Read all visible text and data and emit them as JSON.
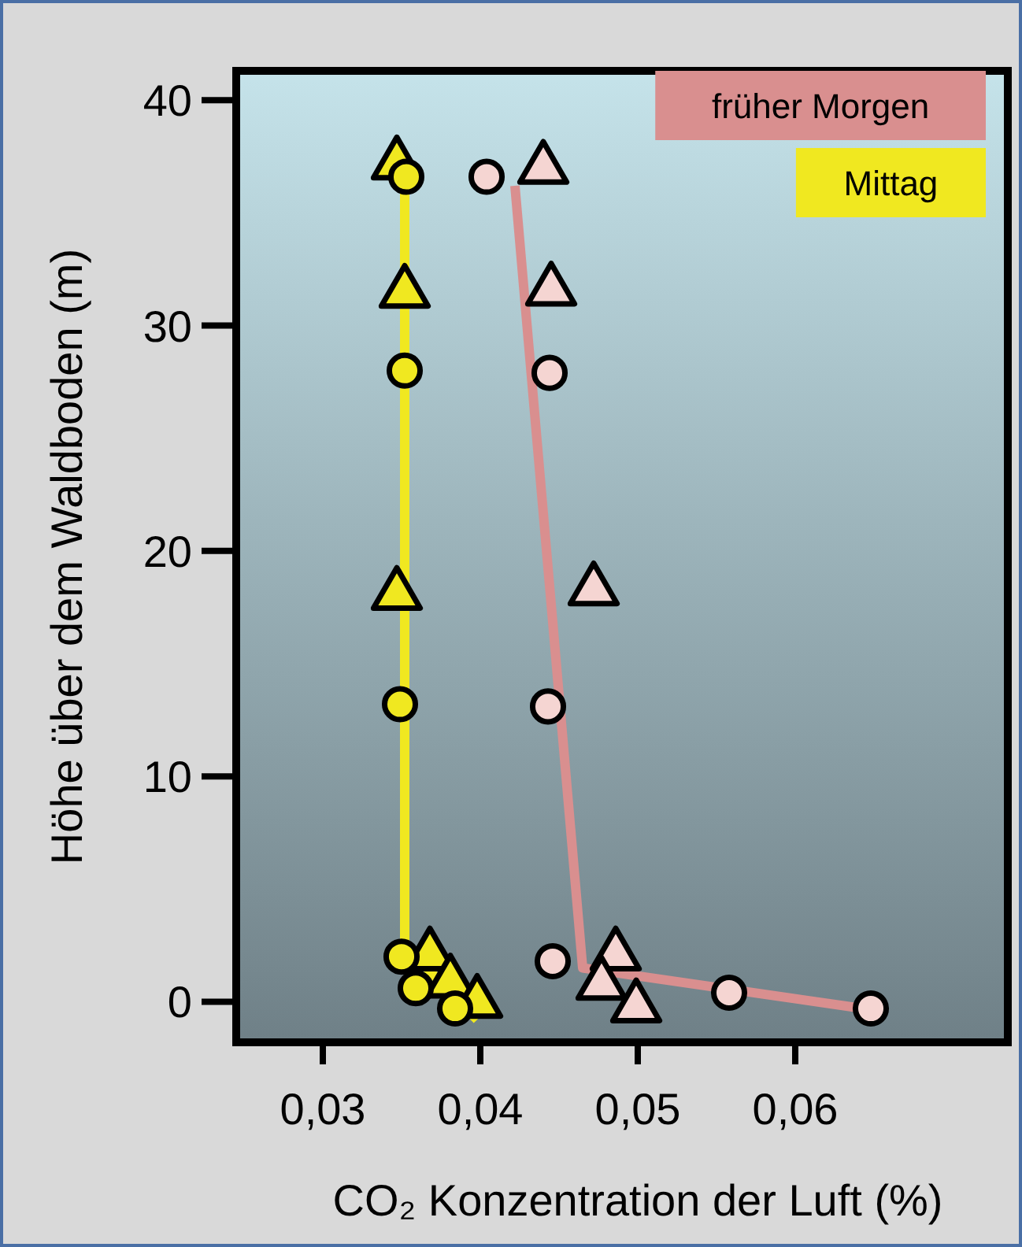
{
  "chart_data": {
    "type": "scatter",
    "xlabel": "CO₂ Konzentration der Luft (%)",
    "ylabel": "Höhe über dem Waldboden (m)",
    "xlim": [
      0.0245,
      0.0735
    ],
    "ylim": [
      -1.8,
      41.3
    ],
    "xticks": [
      {
        "value": 0.03,
        "label": "0,03"
      },
      {
        "value": 0.04,
        "label": "0,04"
      },
      {
        "value": 0.05,
        "label": "0,05"
      },
      {
        "value": 0.06,
        "label": "0,06"
      }
    ],
    "yticks": [
      0,
      10,
      20,
      30,
      40
    ],
    "grid": false,
    "legend": "top right",
    "series": [
      {
        "name": "früher Morgen",
        "type": "line",
        "color": "#d98f8f",
        "marker": "none",
        "x": [
          0.0422,
          0.0465,
          0.0648
        ],
        "values": [
          36.2,
          1.5,
          -0.35
        ]
      },
      {
        "name": "Mittag",
        "type": "line",
        "color": "#f0e820",
        "marker": "none",
        "x": [
          0.0352,
          0.0352,
          0.0398
        ],
        "values": [
          37,
          2.5,
          -0.8
        ]
      },
      {
        "color": "#f0e820",
        "marker": "triangle",
        "x": [
          0.0347,
          0.0352,
          0.0347,
          0.0368,
          0.0381,
          0.0398
        ],
        "values": [
          37.3,
          31.6,
          18.2,
          2.2,
          1.0,
          0.1
        ]
      },
      {
        "color": "#f0e820",
        "marker": "circle",
        "x": [
          0.0353,
          0.0352,
          0.0349,
          0.035,
          0.0359,
          0.0384
        ],
        "values": [
          36.6,
          28.0,
          13.2,
          2.0,
          0.6,
          -0.3
        ]
      },
      {
        "color": "#f5d5d2",
        "marker": "triangle",
        "x": [
          0.044,
          0.0445,
          0.0472,
          0.0486,
          0.0477,
          0.0499
        ],
        "values": [
          37.1,
          31.7,
          18.4,
          2.2,
          0.9,
          -0.1
        ]
      },
      {
        "color": "#f5d5d2",
        "marker": "circle",
        "x": [
          0.0404,
          0.0444,
          0.0443,
          0.0446,
          0.0558,
          0.0648
        ],
        "values": [
          36.6,
          27.9,
          13.1,
          1.8,
          0.4,
          -0.3
        ]
      }
    ]
  }
}
